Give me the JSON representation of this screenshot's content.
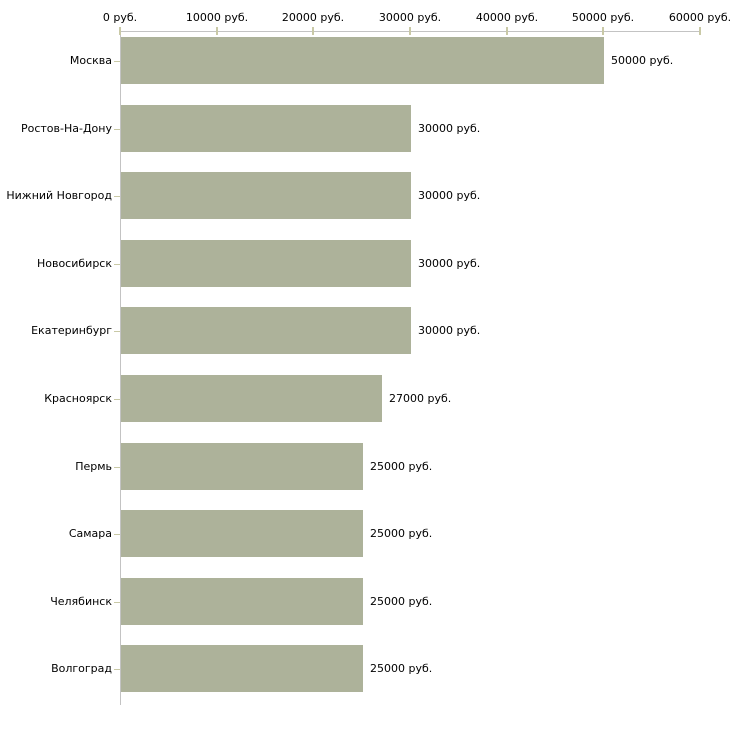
{
  "chart_data": {
    "type": "bar",
    "orientation": "horizontal",
    "title": "",
    "xlabel": "",
    "ylabel": "",
    "unit": "руб.",
    "categories": [
      "Москва",
      "Ростов-На-Дону",
      "Нижний Новгород",
      "Новосибирск",
      "Екатеринбург",
      "Красноярск",
      "Пермь",
      "Самара",
      "Челябинск",
      "Волгоград"
    ],
    "values": [
      50000,
      30000,
      30000,
      30000,
      30000,
      27000,
      25000,
      25000,
      25000,
      25000
    ],
    "value_labels": [
      "50000 руб.",
      "30000 руб.",
      "30000 руб.",
      "30000 руб.",
      "30000 руб.",
      "27000 руб.",
      "25000 руб.",
      "25000 руб.",
      "25000 руб.",
      "25000 руб."
    ],
    "x_ticks": [
      0,
      10000,
      20000,
      30000,
      40000,
      50000,
      60000
    ],
    "x_tick_labels": [
      "0 руб.",
      "10000 руб.",
      "20000 руб.",
      "30000 руб.",
      "40000 руб.",
      "50000 руб.",
      "60000 руб."
    ],
    "xlim": [
      0,
      60000
    ],
    "axis_position": "top",
    "grid": "off",
    "legend": "none",
    "colors": {
      "bar": "#adb29a",
      "axis": "#c3c3c3",
      "tick": "#c9c9a6",
      "text": "#000000",
      "background": "#ffffff"
    }
  }
}
